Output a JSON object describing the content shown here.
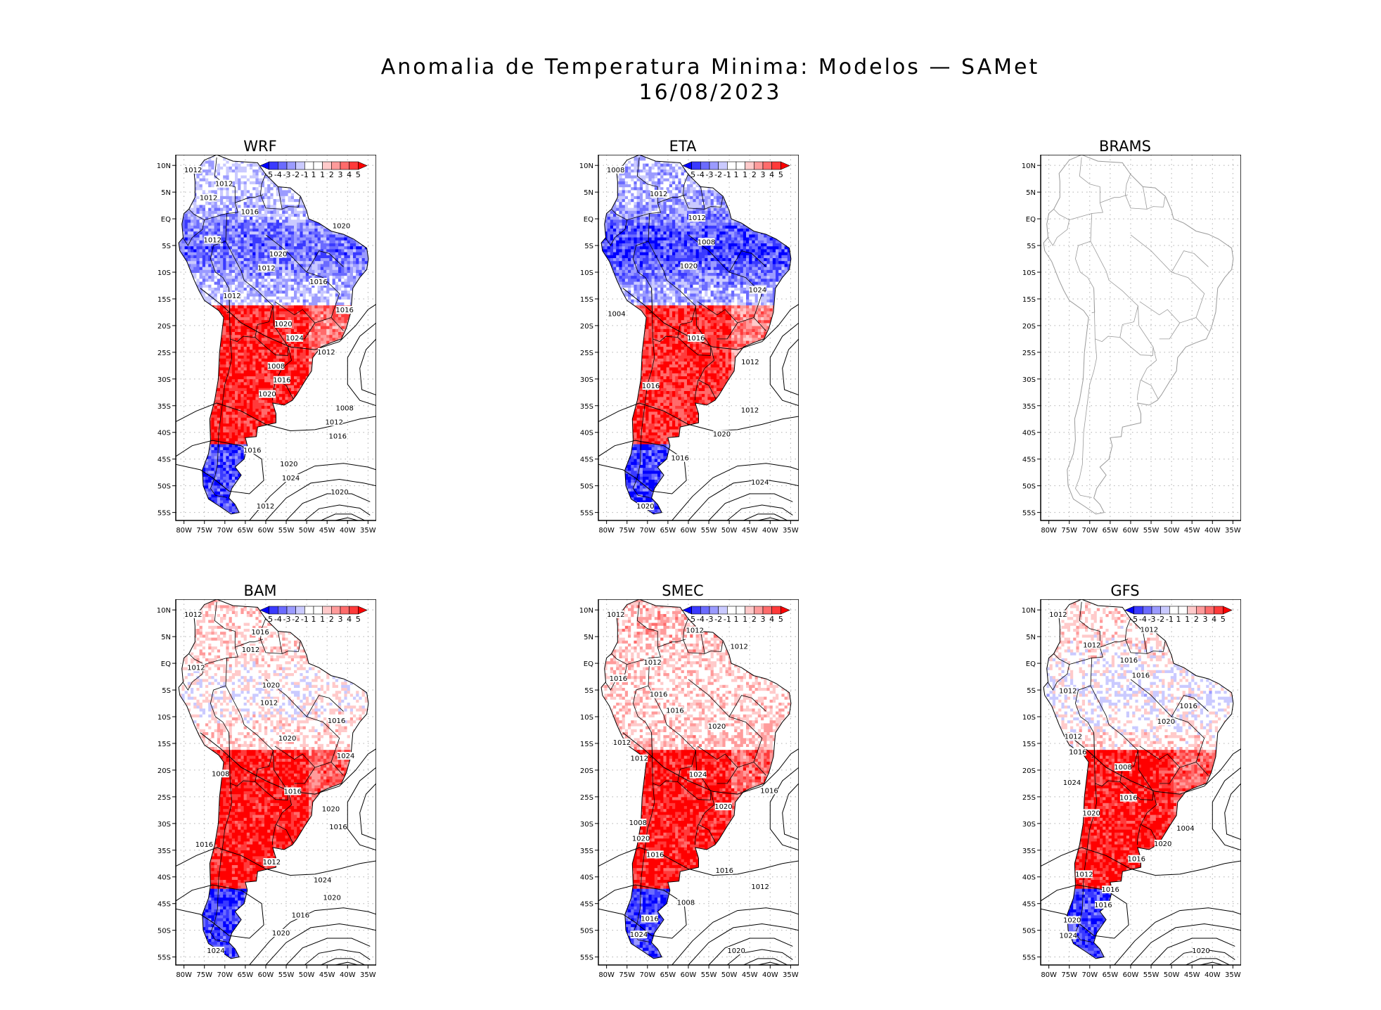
{
  "figure": {
    "title_line1": "Anomalia de Temperatura Minima: Modelos — SAMet",
    "title_line2": "16/08/2023"
  },
  "colors": {
    "cold": "#1a1aff",
    "warm": "#ff1a1a",
    "coast": "#000000",
    "coast_empty": "#9a9a9a",
    "isobar": "#000000"
  },
  "axes": {
    "lat_labels": [
      "10N",
      "5N",
      "EQ",
      "5S",
      "10S",
      "15S",
      "20S",
      "25S",
      "30S",
      "35S",
      "40S",
      "45S",
      "50S",
      "55S"
    ],
    "lon_labels": [
      "80W",
      "75W",
      "70W",
      "65W",
      "60W",
      "55W",
      "50W",
      "45W",
      "40W",
      "35W"
    ]
  },
  "colorbar": {
    "labels": [
      "-5",
      "-4",
      "-3",
      "-2",
      "-1",
      "1",
      "1",
      "2",
      "3",
      "4",
      "5"
    ]
  },
  "panels": [
    {
      "name": "WRF",
      "has_data": true,
      "cold_north": 0.75,
      "warm_south": 0.9,
      "isobar_labels": [
        "1012",
        "1012",
        "1012",
        "1016",
        "1020",
        "1012",
        "1020",
        "1012",
        "1016",
        "1012",
        "1016",
        "1020",
        "1024",
        "1012",
        "1008",
        "1016",
        "1020",
        "1008",
        "1012",
        "1016",
        "1016",
        "1020",
        "1024",
        "1020",
        "1012"
      ]
    },
    {
      "name": "ETA",
      "has_data": true,
      "cold_north": 0.85,
      "warm_south": 0.85,
      "isobar_labels": [
        "1008",
        "1012",
        "1012",
        "1008",
        "1020",
        "1024",
        "1004",
        "1016",
        "1012",
        "1016",
        "1012",
        "1020",
        "1016",
        "1024",
        "1020"
      ]
    },
    {
      "name": "BRAMS",
      "has_data": false,
      "cold_north": 0,
      "warm_south": 0,
      "isobar_labels": []
    },
    {
      "name": "BAM",
      "has_data": true,
      "cold_north": 0.3,
      "warm_south": 0.95,
      "isobar_labels": [
        "1012",
        "1016",
        "1012",
        "1012",
        "1020",
        "1012",
        "1016",
        "1020",
        "1024",
        "1008",
        "1016",
        "1020",
        "1016",
        "1016",
        "1012",
        "1024",
        "1020",
        "1016",
        "1020",
        "1024"
      ]
    },
    {
      "name": "SMEC",
      "has_data": true,
      "cold_north": 0.2,
      "warm_south": 0.95,
      "isobar_labels": [
        "1012",
        "1012",
        "1012",
        "1012",
        "1016",
        "1016",
        "1016",
        "1020",
        "1012",
        "1012",
        "1024",
        "1016",
        "1020",
        "1008",
        "1020",
        "1016",
        "1016",
        "1012",
        "1008",
        "1016",
        "1024",
        "1020"
      ]
    },
    {
      "name": "GFS",
      "has_data": true,
      "cold_north": 0.35,
      "warm_south": 0.95,
      "isobar_labels": [
        "1012",
        "1012",
        "1012",
        "1016",
        "1016",
        "1012",
        "1016",
        "1020",
        "1012",
        "1016",
        "1008",
        "1024",
        "1016",
        "1020",
        "1004",
        "1020",
        "1016",
        "1012",
        "1016",
        "1016",
        "1020",
        "1024",
        "1020"
      ]
    }
  ]
}
